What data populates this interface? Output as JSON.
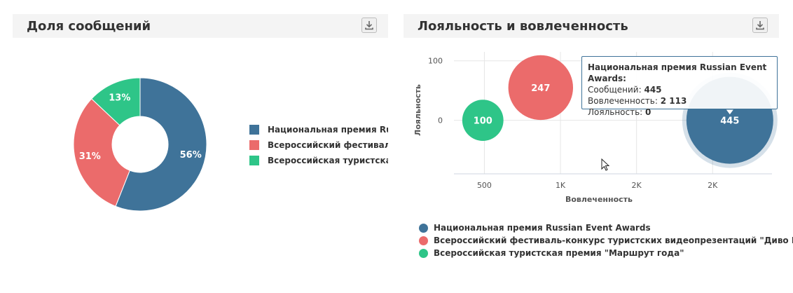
{
  "panels": {
    "share": {
      "title": "Доля сообщений",
      "download_icon": "download-icon"
    },
    "loyalty": {
      "title": "Лояльность и вовлеченность",
      "download_icon": "download-icon"
    }
  },
  "colors": {
    "blue": "#3f7399",
    "red": "#eb6b6b",
    "green": "#2ec588"
  },
  "legend_share": [
    {
      "label": "Национальная премия Russian Event Awards",
      "color": "#3f7399"
    },
    {
      "label": "Всероссийский фестиваль-конкурс туристских видеопрезентаций \"Диво России\"",
      "color": "#eb6b6b"
    },
    {
      "label": "Всероссийская туристская премия \"Маршрут года\"",
      "color": "#2ec588"
    }
  ],
  "legend_loyalty": [
    {
      "label": "Национальная премия Russian Event Awards",
      "color": "#3f7399"
    },
    {
      "label": "Всероссийский фестиваль-конкурс туристских видеопрезентаций \"Диво России\"",
      "color": "#eb6b6b"
    },
    {
      "label": "Всероссийская туристская премия \"Маршрут года\"",
      "color": "#2ec588"
    }
  ],
  "tooltip": {
    "title": "Национальная премия Russian Event Awards:",
    "messages_label": "Сообщений:",
    "messages_value": "445",
    "engagement_label": "Вовлеченность:",
    "engagement_value": "2 113",
    "loyalty_label": "Лояльность:",
    "loyalty_value": "0"
  },
  "chart_data": [
    {
      "type": "pie",
      "subtype": "donut",
      "title": "Доля сообщений",
      "slices": [
        {
          "name": "Национальная премия Russian Event Awards",
          "value": 56,
          "label": "56%",
          "color": "#3f7399"
        },
        {
          "name": "Всероссийский фестиваль-конкурс туристских видеопрезентаций \"Диво России\"",
          "value": 31,
          "label": "31%",
          "color": "#eb6b6b"
        },
        {
          "name": "Всероссийская туристская премия \"Маршрут года\"",
          "value": 13,
          "label": "13%",
          "color": "#2ec588"
        }
      ],
      "legend_position": "right"
    },
    {
      "type": "scatter",
      "subtype": "bubble",
      "title": "Лояльность и вовлеченность",
      "xlabel": "Вовлеченность",
      "ylabel": "Лояльность",
      "x_ticks": [
        500,
        1000,
        1500,
        2000
      ],
      "x_tick_labels": [
        "500",
        "1K",
        "2K",
        "2K"
      ],
      "xlim": [
        300,
        2390
      ],
      "y_ticks": [
        0,
        100
      ],
      "y_tick_labels": [
        "0",
        "100"
      ],
      "ylim": [
        -90,
        115
      ],
      "grid": true,
      "legend_position": "bottom",
      "series": [
        {
          "name": "Национальная премия Russian Event Awards",
          "color": "#3f7399",
          "points": [
            {
              "x": 2113,
              "y": 0,
              "size": 445,
              "label": "445"
            }
          ]
        },
        {
          "name": "Всероссийский фестиваль-конкурс туристских видеопрезентаций \"Диво России\"",
          "color": "#eb6b6b",
          "points": [
            {
              "x": 870,
              "y": 55,
              "size": 247,
              "label": "247"
            }
          ]
        },
        {
          "name": "Всероссийская туристская премия \"Маршрут года\"",
          "color": "#2ec588",
          "points": [
            {
              "x": 490,
              "y": 0,
              "size": 100,
              "label": "100"
            }
          ]
        }
      ]
    }
  ]
}
